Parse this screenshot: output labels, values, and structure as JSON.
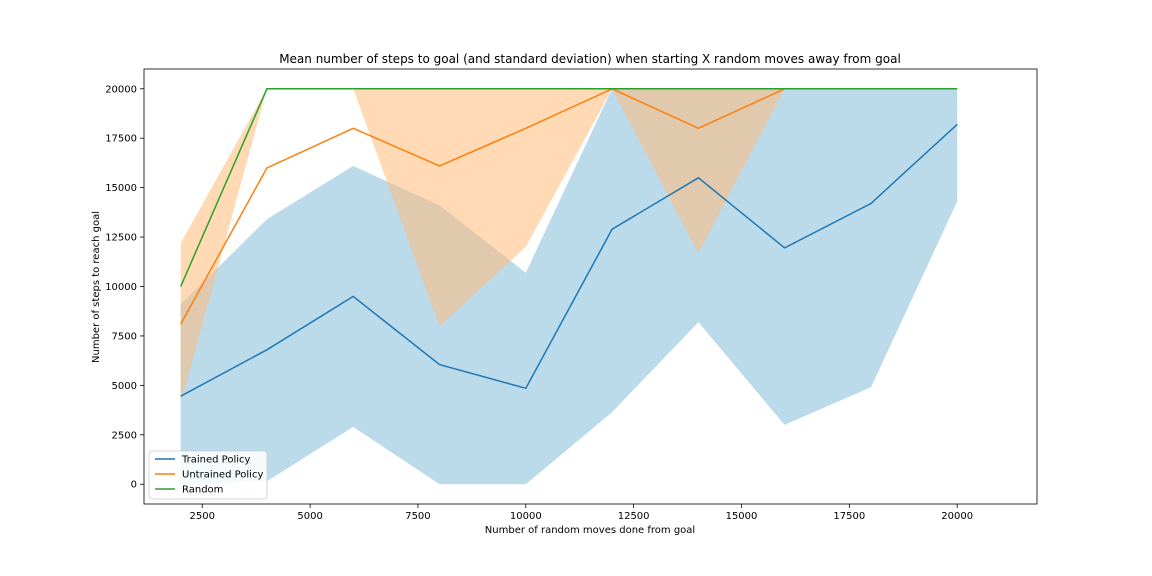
{
  "chart_data": {
    "type": "line",
    "title": "Mean number of steps to goal (and standard deviation) when starting X random moves away from goal",
    "xlabel": "Number of random moves done from goal",
    "ylabel": "Number of steps to reach goal",
    "xlim": [
      1150,
      21850
    ],
    "ylim": [
      -1000,
      21000
    ],
    "xticks": [
      2500,
      5000,
      7500,
      10000,
      12500,
      15000,
      17500,
      20000
    ],
    "yticks": [
      0,
      2500,
      5000,
      7500,
      10000,
      12500,
      15000,
      17500,
      20000
    ],
    "x": [
      2000,
      4000,
      6000,
      8000,
      10000,
      12000,
      14000,
      16000,
      18000,
      20000
    ],
    "grid": false,
    "legend_position": "lower-left",
    "series": [
      {
        "name": "Trained Policy",
        "color": "#1f77b4",
        "band_color": "#9ecae1",
        "values": [
          4450,
          6800,
          9500,
          6050,
          4850,
          12900,
          15500,
          11950,
          14200,
          18200
        ],
        "lower": [
          0,
          150,
          2900,
          0,
          0,
          3650,
          8200,
          3000,
          4900,
          14300
        ],
        "upper": [
          9100,
          13400,
          16100,
          14100,
          10700,
          20000,
          20000,
          20000,
          20000,
          20000
        ]
      },
      {
        "name": "Untrained Policy",
        "color": "#ff7f0e",
        "band_color": "#ffbb78",
        "values": [
          8100,
          16000,
          18000,
          16100,
          18000,
          20000,
          18000,
          20000,
          20000,
          20000
        ],
        "lower": [
          4100,
          20000,
          20000,
          8000,
          12000,
          20000,
          11700,
          20000,
          20000,
          20000
        ],
        "upper": [
          12200,
          20000,
          20000,
          20000,
          20000,
          20000,
          20000,
          20000,
          20000,
          20000
        ]
      },
      {
        "name": "Random",
        "color": "#2ca02c",
        "values": [
          10000,
          20000,
          20000,
          20000,
          20000,
          20000,
          20000,
          20000,
          20000,
          20000
        ]
      }
    ]
  }
}
